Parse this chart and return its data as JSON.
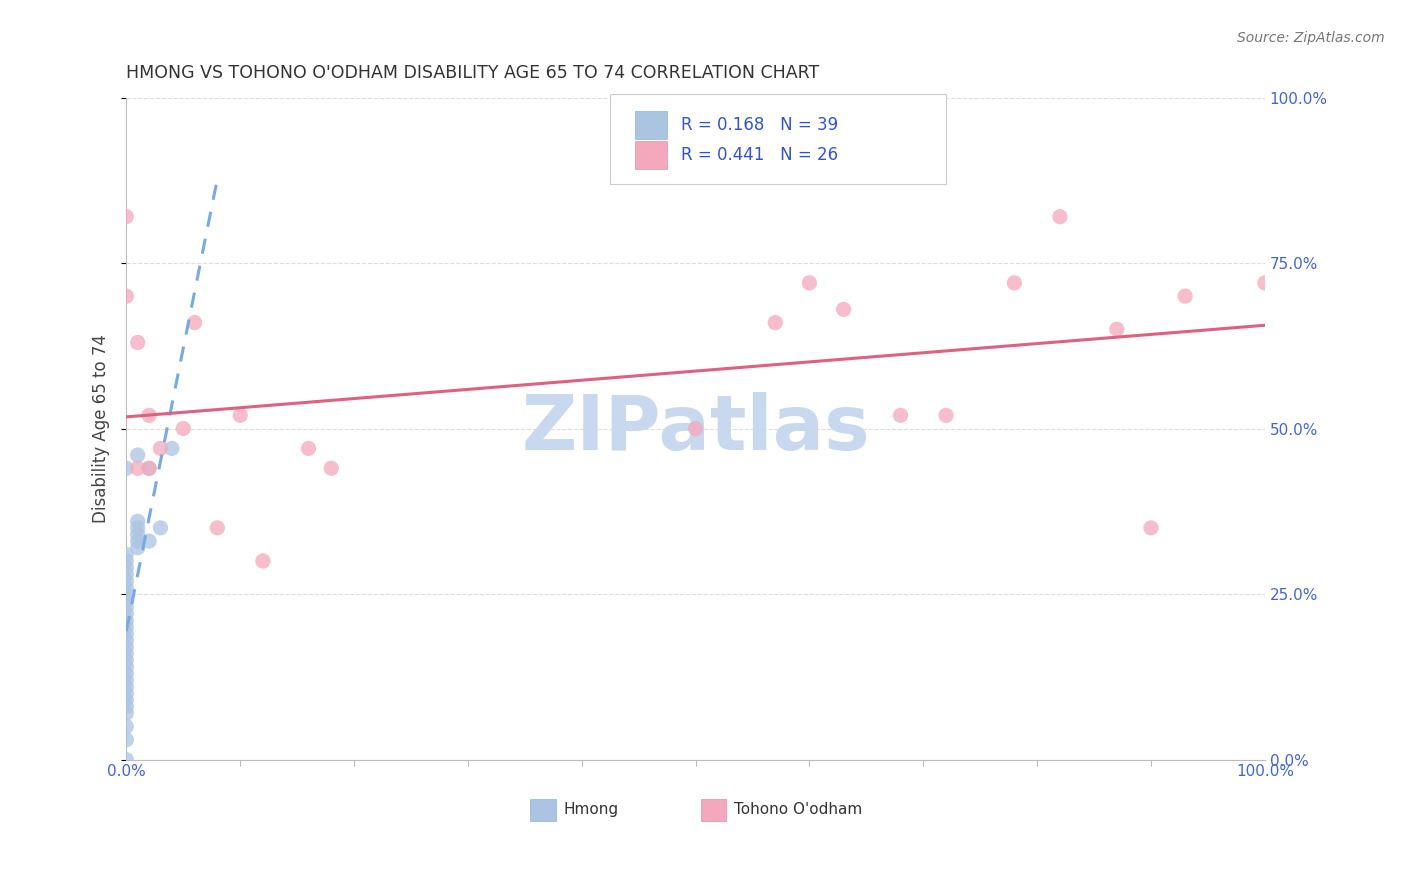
{
  "title": "HMONG VS TOHONO O'ODHAM DISABILITY AGE 65 TO 74 CORRELATION CHART",
  "source": "Source: ZipAtlas.com",
  "ylabel": "Disability Age 65 to 74",
  "xlim": [
    0.0,
    1.0
  ],
  "ylim": [
    0.0,
    1.0
  ],
  "ytick_positions": [
    0.0,
    0.25,
    0.5,
    0.75,
    1.0
  ],
  "ytick_labels": [
    "0.0%",
    "25.0%",
    "50.0%",
    "75.0%",
    "100.0%"
  ],
  "hmong_x": [
    0.0,
    0.0,
    0.0,
    0.0,
    0.0,
    0.0,
    0.0,
    0.0,
    0.0,
    0.0,
    0.0,
    0.0,
    0.0,
    0.0,
    0.0,
    0.0,
    0.0,
    0.0,
    0.0,
    0.0,
    0.0,
    0.0,
    0.0,
    0.0,
    0.0,
    0.0,
    0.0,
    0.0,
    0.0,
    0.01,
    0.01,
    0.01,
    0.01,
    0.01,
    0.01,
    0.02,
    0.02,
    0.03,
    0.04
  ],
  "hmong_y": [
    0.0,
    0.03,
    0.05,
    0.07,
    0.08,
    0.09,
    0.1,
    0.11,
    0.12,
    0.13,
    0.14,
    0.15,
    0.16,
    0.17,
    0.18,
    0.19,
    0.2,
    0.21,
    0.22,
    0.23,
    0.24,
    0.25,
    0.26,
    0.27,
    0.28,
    0.29,
    0.3,
    0.31,
    0.44,
    0.32,
    0.33,
    0.34,
    0.35,
    0.36,
    0.46,
    0.33,
    0.44,
    0.35,
    0.47
  ],
  "tohono_x": [
    0.0,
    0.0,
    0.01,
    0.01,
    0.02,
    0.02,
    0.03,
    0.05,
    0.06,
    0.08,
    0.1,
    0.12,
    0.16,
    0.18,
    0.5,
    0.57,
    0.6,
    0.63,
    0.68,
    0.72,
    0.78,
    0.82,
    0.87,
    0.9,
    0.93,
    1.0
  ],
  "tohono_y": [
    0.82,
    0.7,
    0.63,
    0.44,
    0.44,
    0.52,
    0.47,
    0.5,
    0.66,
    0.35,
    0.52,
    0.3,
    0.47,
    0.44,
    0.5,
    0.66,
    0.72,
    0.68,
    0.52,
    0.52,
    0.72,
    0.82,
    0.65,
    0.35,
    0.7,
    0.72
  ],
  "hmong_R": 0.168,
  "hmong_N": 39,
  "tohono_R": 0.441,
  "tohono_N": 26,
  "hmong_color": "#aac4e2",
  "tohono_color": "#f4a8bc",
  "hmong_line_color": "#7aaadd",
  "tohono_line_color": "#e06080",
  "legend_color": "#3355cc",
  "title_color": "#333333",
  "source_color": "#777777",
  "ylabel_color": "#444444",
  "axis_tick_color": "#4466cc",
  "grid_color": "#dddddd",
  "watermark_color": "#c8d8ee",
  "background_color": "#ffffff",
  "marker_size": 11,
  "marker_alpha": 0.75,
  "line_width": 2.2
}
